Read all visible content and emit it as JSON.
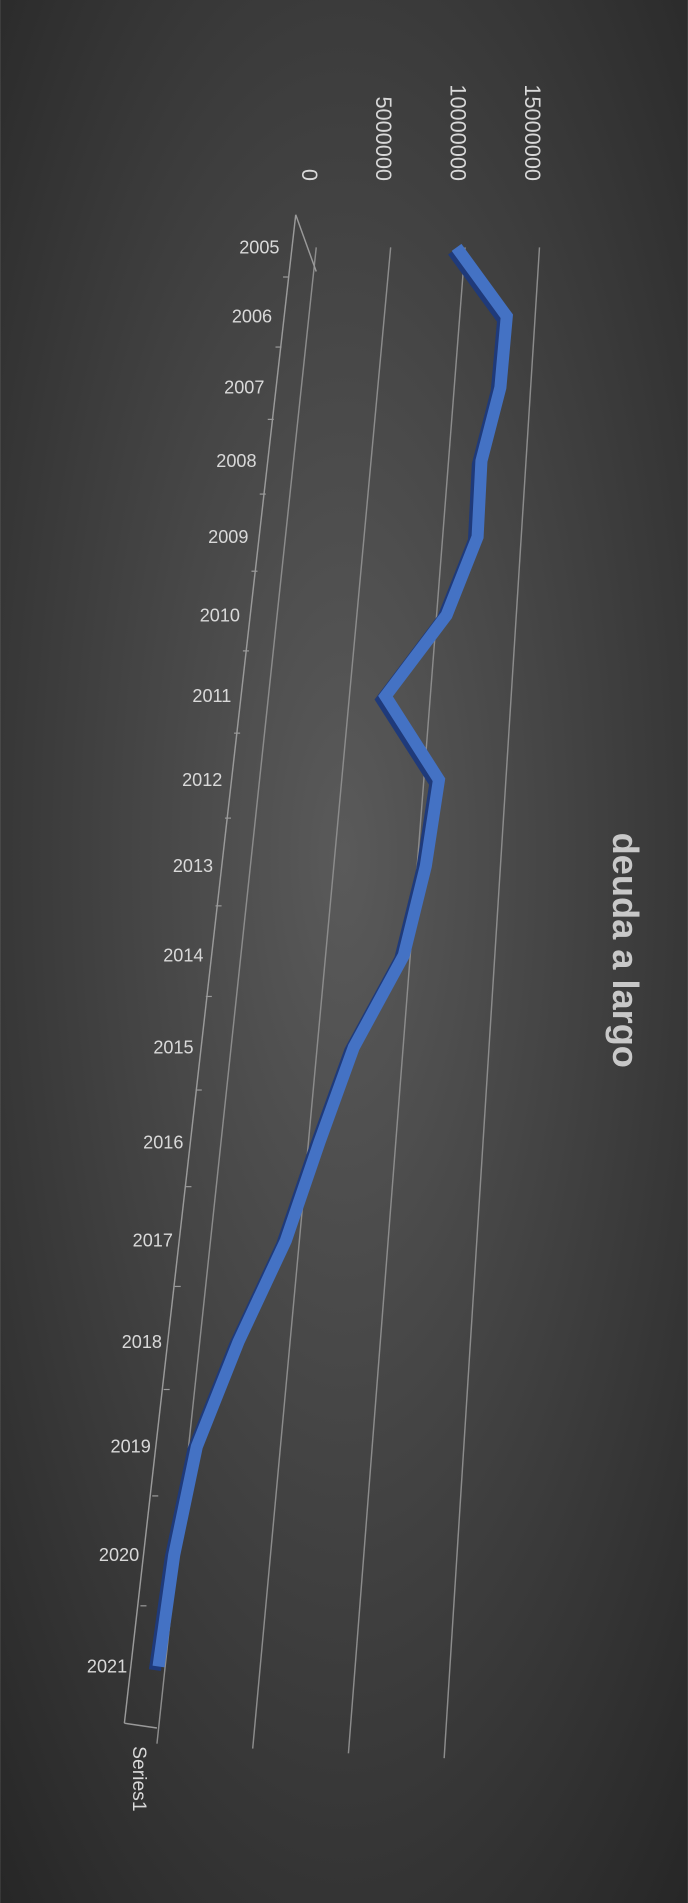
{
  "chart_data": {
    "type": "line",
    "title": "deuda a largo",
    "categories": [
      "2005",
      "2006",
      "2007",
      "2008",
      "2009",
      "2010",
      "2011",
      "2012",
      "2013",
      "2014",
      "2015",
      "2016",
      "2017",
      "2018",
      "2019",
      "2020",
      "2021"
    ],
    "series": [
      {
        "name": "Series1",
        "color": "#4472c4",
        "values": [
          9800000,
          13500000,
          13400000,
          12500000,
          12600000,
          11000000,
          7600000,
          11300000,
          10900000,
          10000000,
          7500000,
          6000000,
          4600000,
          2500000,
          800000,
          200000,
          0
        ]
      }
    ],
    "ylim": [
      0,
      15000000
    ],
    "yticks": [
      0,
      5000000,
      10000000,
      15000000
    ],
    "grid": true,
    "legend": "bottom"
  }
}
